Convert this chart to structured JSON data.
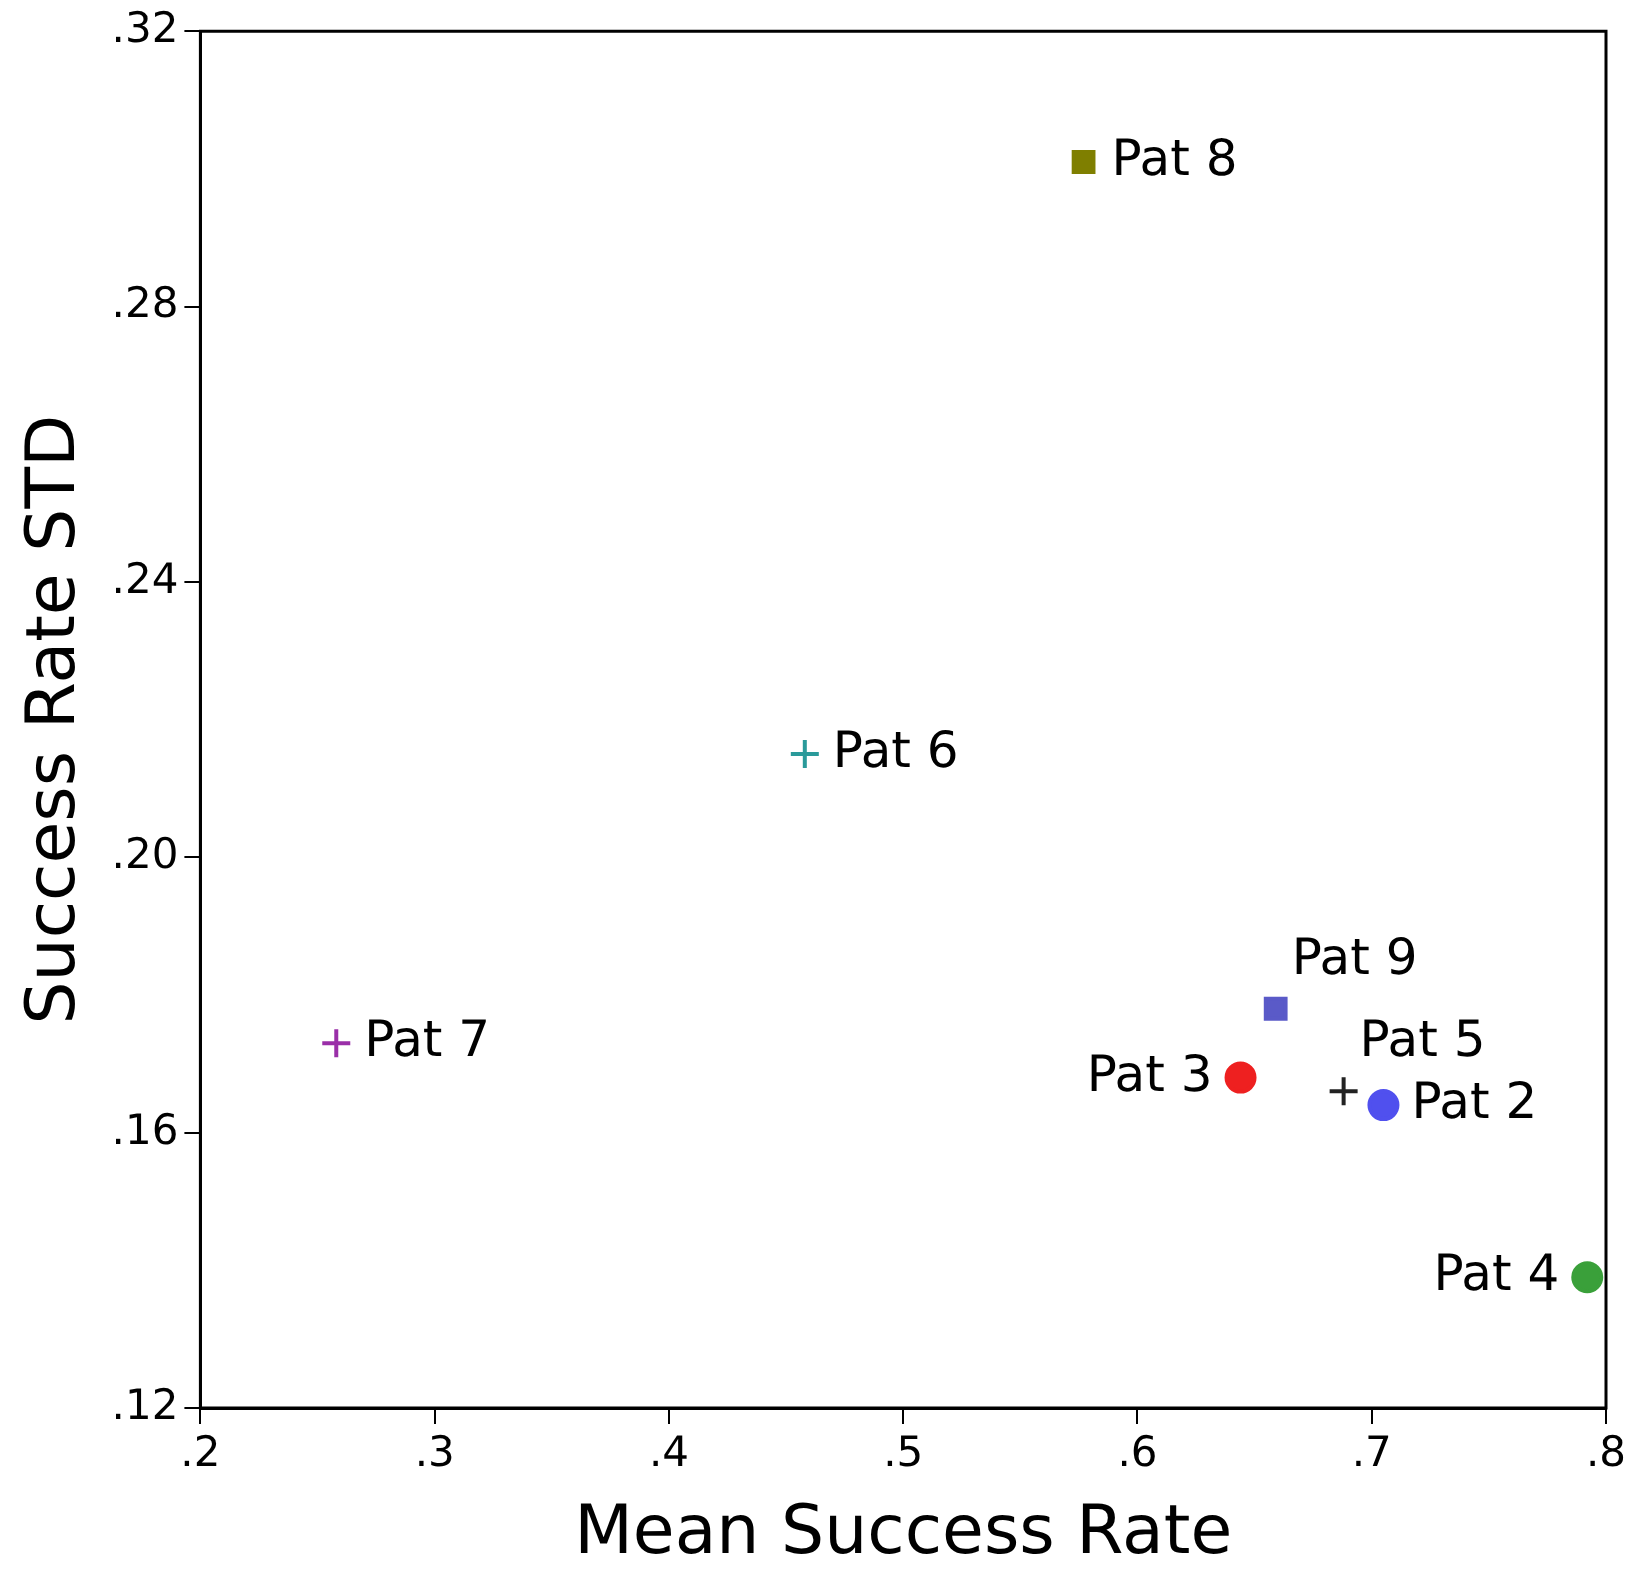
{
  "chart_data": {
    "type": "scatter",
    "xlabel": "Mean Success Rate",
    "ylabel": "Success Rate STD",
    "xlim": [
      0.2,
      0.8
    ],
    "ylim": [
      0.12,
      0.32
    ],
    "xticks": [
      {
        "value": 0.2,
        "label": ".2"
      },
      {
        "value": 0.3,
        "label": ".3"
      },
      {
        "value": 0.4,
        "label": ".4"
      },
      {
        "value": 0.5,
        "label": ".5"
      },
      {
        "value": 0.6,
        "label": ".6"
      },
      {
        "value": 0.7,
        "label": ".7"
      },
      {
        "value": 0.8,
        "label": ".8"
      }
    ],
    "yticks": [
      {
        "value": 0.12,
        "label": ".12"
      },
      {
        "value": 0.16,
        "label": ".16"
      },
      {
        "value": 0.2,
        "label": ".20"
      },
      {
        "value": 0.24,
        "label": ".24"
      },
      {
        "value": 0.28,
        "label": ".28"
      },
      {
        "value": 0.32,
        "label": ".32"
      }
    ],
    "grid": false,
    "legend": false,
    "series": [
      {
        "name": "Pat 8",
        "color": "#7f7f00",
        "marker": "square",
        "x": [
          0.577
        ],
        "values": [
          0.301
        ]
      },
      {
        "name": "Pat 6",
        "color": "#2a9a9a",
        "marker": "cross",
        "x": [
          0.458
        ],
        "values": [
          0.215
        ]
      },
      {
        "name": "Pat 7",
        "color": "#9a2fa8",
        "marker": "cross",
        "x": [
          0.258
        ],
        "values": [
          0.173
        ]
      },
      {
        "name": "Pat 9",
        "color": "#5a5ac8",
        "marker": "square",
        "x": [
          0.659
        ],
        "values": [
          0.178
        ]
      },
      {
        "name": "Pat 3",
        "color": "#ee2020",
        "marker": "circle",
        "x": [
          0.644
        ],
        "values": [
          0.168
        ]
      },
      {
        "name": "Pat 5",
        "color": "#222222",
        "marker": "cross",
        "x": [
          0.688
        ],
        "values": [
          0.166
        ]
      },
      {
        "name": "Pat 2",
        "color": "#5050ee",
        "marker": "circle",
        "x": [
          0.705
        ],
        "values": [
          0.164
        ]
      },
      {
        "name": "Pat 4",
        "color": "#3aa03a",
        "marker": "circle",
        "x": [
          0.792
        ],
        "values": [
          0.139
        ]
      }
    ]
  }
}
